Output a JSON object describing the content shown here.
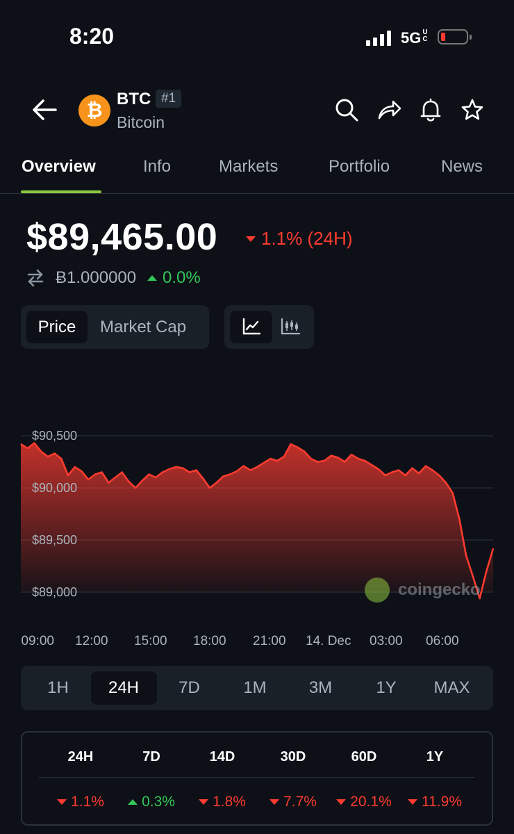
{
  "status": {
    "time": "8:20",
    "network": "5G",
    "network_sup": "UC"
  },
  "header": {
    "symbol": "BTC",
    "rank": "#1",
    "name": "Bitcoin",
    "coin_glyph": "₿"
  },
  "tabs": [
    {
      "label": "Overview",
      "active": true
    },
    {
      "label": "Info"
    },
    {
      "label": "Markets"
    },
    {
      "label": "Portfolio"
    },
    {
      "label": "News"
    }
  ],
  "price": {
    "value": "$89,465.00",
    "change": "1.1% (24H)",
    "btc_value": "Ƀ1.000000",
    "btc_change": "0.0%"
  },
  "toggles": {
    "price_label": "Price",
    "mcap_label": "Market Cap"
  },
  "chart_data": {
    "type": "area",
    "color": "#ff3b30",
    "y_ticks": [
      "$90,500",
      "$90,000",
      "$89,500",
      "$89,000"
    ],
    "ylim": [
      88900,
      90600
    ],
    "x_ticks": [
      "09:00",
      "12:00",
      "15:00",
      "18:00",
      "21:00",
      "14. Dec",
      "03:00",
      "06:00"
    ],
    "values": [
      90420,
      90380,
      90430,
      90350,
      90300,
      90330,
      90280,
      90120,
      90200,
      90160,
      90080,
      90130,
      90150,
      90050,
      90100,
      90150,
      90060,
      90000,
      90070,
      90130,
      90100,
      90150,
      90180,
      90200,
      90190,
      90150,
      90170,
      90090,
      90000,
      90050,
      90110,
      90130,
      90160,
      90210,
      90170,
      90200,
      90240,
      90280,
      90260,
      90300,
      90420,
      90390,
      90350,
      90280,
      90250,
      90260,
      90310,
      90290,
      90250,
      90320,
      90280,
      90260,
      90220,
      90180,
      90120,
      90150,
      90170,
      90120,
      90190,
      90140,
      90210,
      90170,
      90120,
      90050,
      89950,
      89700,
      89350,
      89150,
      88940,
      89200,
      89420
    ],
    "watermark": "coingecko"
  },
  "ranges": [
    {
      "label": "1H"
    },
    {
      "label": "24H",
      "active": true
    },
    {
      "label": "7D"
    },
    {
      "label": "1M"
    },
    {
      "label": "3M"
    },
    {
      "label": "1Y"
    },
    {
      "label": "MAX"
    }
  ],
  "performance": {
    "headers": [
      "24H",
      "7D",
      "14D",
      "30D",
      "60D",
      "1Y"
    ],
    "values": [
      {
        "text": "1.1%",
        "dir": "down"
      },
      {
        "text": "0.3%",
        "dir": "up"
      },
      {
        "text": "1.8%",
        "dir": "down"
      },
      {
        "text": "7.7%",
        "dir": "down"
      },
      {
        "text": "20.1%",
        "dir": "down"
      },
      {
        "text": "11.9%",
        "dir": "down"
      }
    ]
  }
}
